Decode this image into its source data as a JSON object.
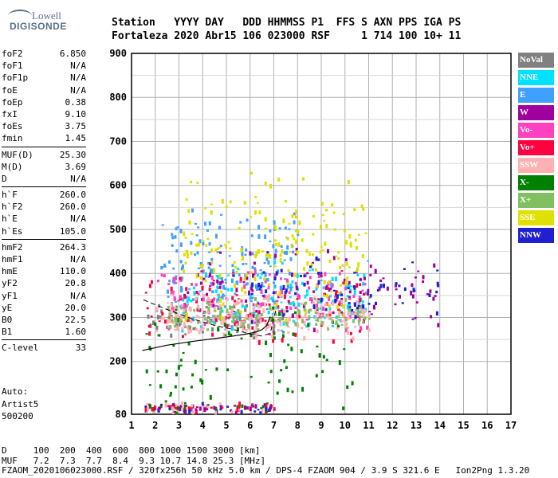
{
  "logo": {
    "line1": "Lowell",
    "line2": "DIGISONDE"
  },
  "header": {
    "line1": "Station   YYYY DAY   DDD HHMMSS P1  FFS S AXN PPS IGA PS",
    "line2": "Fortaleza 2020 Abr15 106 023000 RSF     1 714 100 10+ 11"
  },
  "params": {
    "group1": [
      {
        "name": "foF2",
        "value": "6.850"
      },
      {
        "name": "foF1",
        "value": "N/A"
      },
      {
        "name": "foF1p",
        "value": "N/A"
      },
      {
        "name": "foE",
        "value": "N/A"
      },
      {
        "name": "foEp",
        "value": "0.38"
      },
      {
        "name": "fxI",
        "value": "9.10"
      },
      {
        "name": "foEs",
        "value": "3.75"
      },
      {
        "name": "fmin",
        "value": "1.45"
      }
    ],
    "group2": [
      {
        "name": "MUF(D)",
        "value": "25.30"
      },
      {
        "name": "M(D)",
        "value": "3.69"
      },
      {
        "name": "D",
        "value": "N/A"
      }
    ],
    "group3": [
      {
        "name": "h`F",
        "value": "260.0"
      },
      {
        "name": "h`F2",
        "value": "260.0"
      },
      {
        "name": "h`E",
        "value": "N/A"
      },
      {
        "name": "h`Es",
        "value": "105.0"
      }
    ],
    "group4": [
      {
        "name": "hmF2",
        "value": "264.3"
      },
      {
        "name": "hmF1",
        "value": "N/A"
      },
      {
        "name": "hmE",
        "value": "110.0"
      },
      {
        "name": "yF2",
        "value": "20.8"
      },
      {
        "name": "yF1",
        "value": "N/A"
      },
      {
        "name": "yE",
        "value": "20.0"
      },
      {
        "name": "B0",
        "value": "22.5"
      },
      {
        "name": "B1",
        "value": "1.60"
      }
    ],
    "group5": [
      {
        "name": "C-level",
        "value": "33"
      }
    ]
  },
  "auto": {
    "line1": "Auto:",
    "line2": "Artist5",
    "line3": "500200"
  },
  "legend": [
    {
      "label": "NoVal",
      "color": "#808080"
    },
    {
      "label": "NNE",
      "color": "#00e0ff"
    },
    {
      "label": "E",
      "color": "#40a0ff"
    },
    {
      "label": "W",
      "color": "#a000a0"
    },
    {
      "label": "Vo-",
      "color": "#ff40c0"
    },
    {
      "label": "Vo+",
      "color": "#ff0040"
    },
    {
      "label": "SSW",
      "color": "#ffb0b0"
    },
    {
      "label": "X-",
      "color": "#008000"
    },
    {
      "label": "X+",
      "color": "#80c060"
    },
    {
      "label": "SSE",
      "color": "#e0e000"
    },
    {
      "label": "NNW",
      "color": "#2020d0"
    }
  ],
  "footer": {
    "line1": "D     100  200  400  600  800 1000 1500 3000 [km]",
    "line2": "MUF   7.2  7.3  7.7  8.4  9.3 10.7 14.8 25.3 [MHz]",
    "line3": "FZAOM_2020106023000.RSF / 320fx256h 50 kHz 5.0 km / DPS-4 FZAOM 904 / 3.9 S 321.6 E   Ion2Png 1.3.20"
  },
  "chart_data": {
    "type": "scatter",
    "xlim": [
      1,
      17
    ],
    "ylim": [
      80,
      900
    ],
    "x_ticks": [
      "1",
      "2",
      "3",
      "4",
      "5",
      "6",
      "7",
      "8",
      "9",
      "10",
      "11",
      "12",
      "13",
      "14",
      "15",
      "16",
      "17"
    ],
    "y_ticks": [
      "80",
      "200",
      "300",
      "400",
      "500",
      "600",
      "700",
      "800",
      "900"
    ],
    "grid": true,
    "clusters": [
      {
        "name": "NoVal",
        "x": [
          1.5,
          7.5
        ],
        "y": [
          250,
          340
        ],
        "n": 90
      },
      {
        "name": "NNE",
        "x": [
          3.0,
          11.0
        ],
        "y": [
          260,
          440
        ],
        "n": 160
      },
      {
        "name": "E",
        "x": [
          2.0,
          8.0
        ],
        "y": [
          290,
          560
        ],
        "n": 160
      },
      {
        "name": "W",
        "x": [
          3.0,
          14.0
        ],
        "y": [
          270,
          470
        ],
        "n": 110
      },
      {
        "name": "Vo-",
        "x": [
          2.0,
          11.0
        ],
        "y": [
          260,
          420
        ],
        "n": 130
      },
      {
        "name": "Vo+",
        "x": [
          1.5,
          11.0
        ],
        "y": [
          210,
          420
        ],
        "n": 90
      },
      {
        "name": "SSW",
        "x": [
          2.0,
          11.0
        ],
        "y": [
          250,
          360
        ],
        "n": 200
      },
      {
        "name": "X-",
        "x": [
          1.5,
          10.5
        ],
        "y": [
          90,
          340
        ],
        "n": 80
      },
      {
        "name": "X+",
        "x": [
          2.5,
          11.0
        ],
        "y": [
          260,
          360
        ],
        "n": 110
      },
      {
        "name": "SSE",
        "x": [
          3.0,
          11.0
        ],
        "y": [
          260,
          650
        ],
        "n": 190
      },
      {
        "name": "NNW",
        "x": [
          6.0,
          14.0
        ],
        "y": [
          280,
          460
        ],
        "n": 70
      },
      {
        "name": "Es-layer",
        "x": [
          1.5,
          7.0
        ],
        "y": [
          85,
          110
        ],
        "n": 140
      }
    ],
    "profile": {
      "x": [
        1.45,
        2.5,
        3.5,
        4.5,
        5.2,
        5.8,
        6.2,
        6.5,
        6.7,
        6.85
      ],
      "y": [
        225,
        237,
        245,
        252,
        257,
        262,
        266,
        272,
        282,
        302
      ]
    },
    "profile_ext": {
      "x": [
        1.5,
        2.5,
        3.5,
        4.5,
        5.5,
        6.0,
        6.5,
        6.85,
        7.1
      ],
      "y": [
        340,
        318,
        298,
        282,
        270,
        262,
        258,
        264,
        320
      ]
    }
  }
}
